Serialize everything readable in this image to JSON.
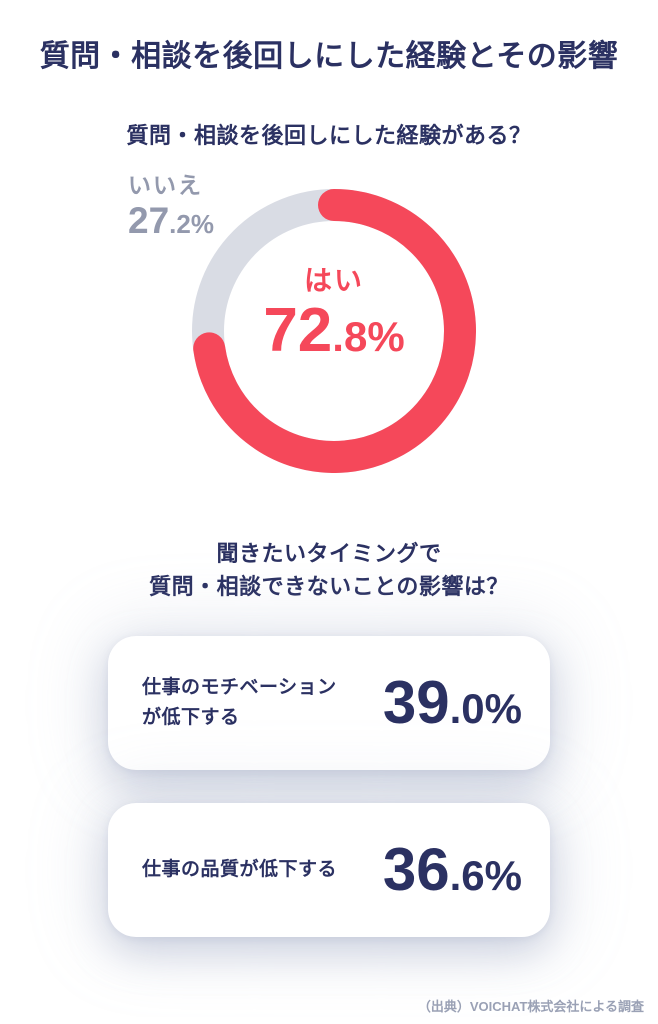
{
  "theme": {
    "navy": "#2b3162",
    "red": "#f5485a",
    "ring_gray": "#d9dce4",
    "label_gray": "#9399ad",
    "footer_gray": "#9aa1b5",
    "card_bg": "#ffffff",
    "page_bg": "#ffffff"
  },
  "header": {
    "title": "質問・相談を後回しにした経験とその影響"
  },
  "donut_section": {
    "question": "質問・相談を後回しにした経験がある？",
    "no_label": "いいえ",
    "no_value": {
      "int": "27",
      "rest": ".2%"
    },
    "yes_label": "はい",
    "yes_value": {
      "int": "72",
      "rest": ".8%"
    }
  },
  "impact_section": {
    "question_line1": "聞きたいタイミングで",
    "question_line2": "質問・相談できないことの影響は？",
    "cards": [
      {
        "label_line1": "仕事のモチベーション",
        "label_line2": "が低下する",
        "value": {
          "int": "39",
          "rest": ".0%"
        }
      },
      {
        "label_line1": "仕事の品質が低下する",
        "value": {
          "int": "36",
          "rest": ".6%"
        }
      }
    ]
  },
  "footer": {
    "source": "（出典）VOICHAT株式会社による調査"
  },
  "chart_data": [
    {
      "type": "pie",
      "donut": true,
      "title": "質問・相談を後回しにした経験がある？",
      "labels": [
        "はい",
        "いいえ"
      ],
      "values": [
        72.8,
        27.2
      ],
      "colors": [
        "#f5485a",
        "#d9dce4"
      ],
      "start_angle_deg": 0,
      "direction": "clockwise",
      "center_label": "はい 72.8%"
    },
    {
      "type": "bar",
      "title": "聞きたいタイミングで質問・相談できないことの影響は？",
      "categories": [
        "仕事のモチベーションが低下する",
        "仕事の品質が低下する"
      ],
      "values": [
        39.0,
        36.6
      ],
      "unit": "%"
    }
  ]
}
